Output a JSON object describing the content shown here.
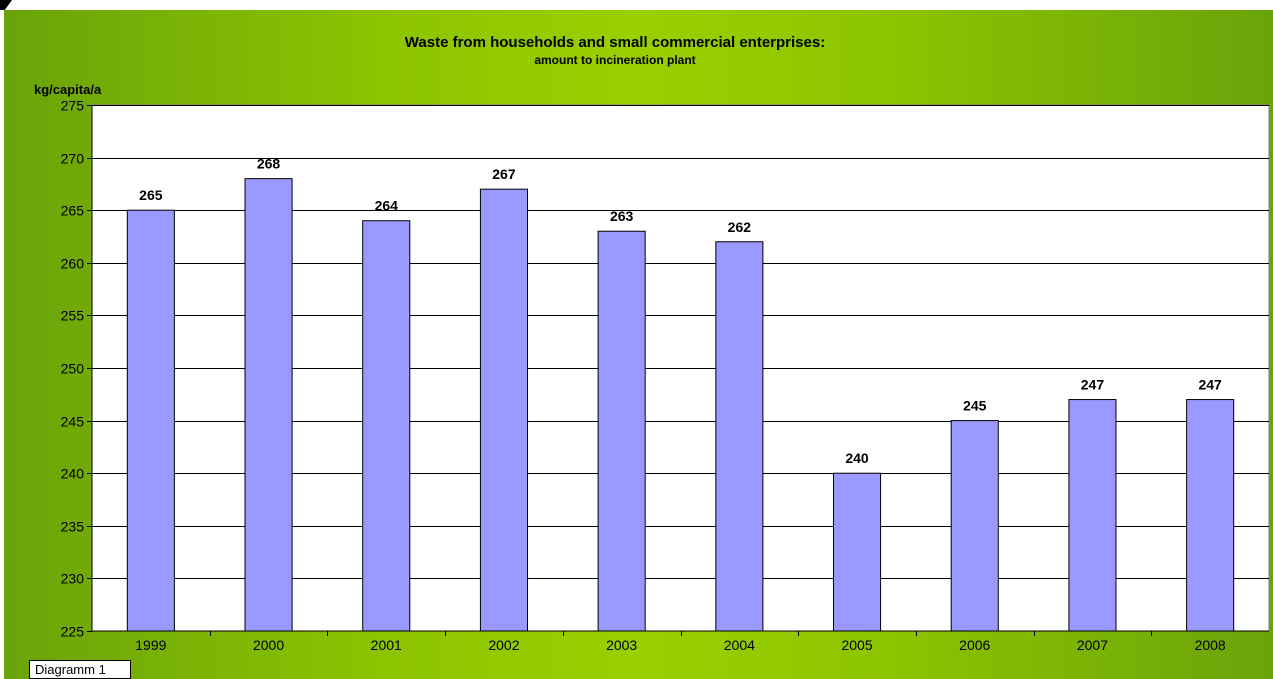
{
  "chart_data": {
    "type": "bar",
    "title": "Waste from households and small commercial enterprises:",
    "subtitle": "amount to incineration plant",
    "ylabel": "kg/capita/a",
    "xlabel": "",
    "ylim": [
      225,
      275
    ],
    "ytick_step": 5,
    "grid": true,
    "legend": "none",
    "bar_color": "#9999ff",
    "categories": [
      "1999",
      "2000",
      "2001",
      "2002",
      "2003",
      "2004",
      "2005",
      "2006",
      "2007",
      "2008"
    ],
    "values": [
      265,
      268,
      264,
      267,
      263,
      262,
      240,
      245,
      247,
      247
    ]
  },
  "sheet_tab": {
    "label": "Diagramm 1"
  }
}
